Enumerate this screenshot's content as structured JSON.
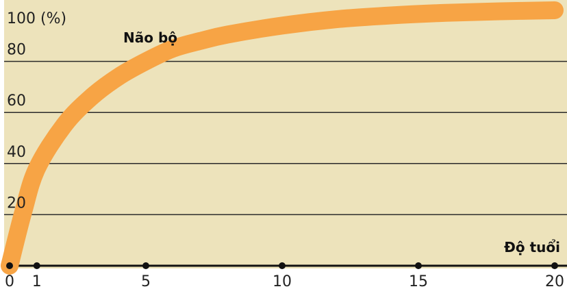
{
  "chart_data": {
    "type": "line",
    "title": "",
    "ylabel_unit": "(%)",
    "xlabel": "Độ tuổi",
    "xlim": [
      0,
      20
    ],
    "ylim": [
      0,
      100
    ],
    "x_ticks": [
      0,
      1,
      5,
      10,
      15,
      20
    ],
    "y_ticks": [
      20,
      40,
      60,
      80,
      100
    ],
    "y_tick_labels": [
      "20",
      "40",
      "60",
      "80",
      "100"
    ],
    "grid": true,
    "colors": {
      "background": "#ede3bb",
      "curve": "#f7a445",
      "grid": "#2a2a2a",
      "axis": "#111111"
    },
    "series": [
      {
        "name": "Não bộ",
        "x": [
          0,
          0.5,
          1,
          2,
          3,
          4,
          5,
          6,
          7,
          8,
          10,
          12,
          14,
          16,
          18,
          20
        ],
        "y": [
          0,
          21,
          38,
          55,
          66,
          74,
          80,
          85,
          88,
          90.5,
          94,
          96.5,
          98,
          99,
          99.6,
          100
        ]
      }
    ]
  }
}
